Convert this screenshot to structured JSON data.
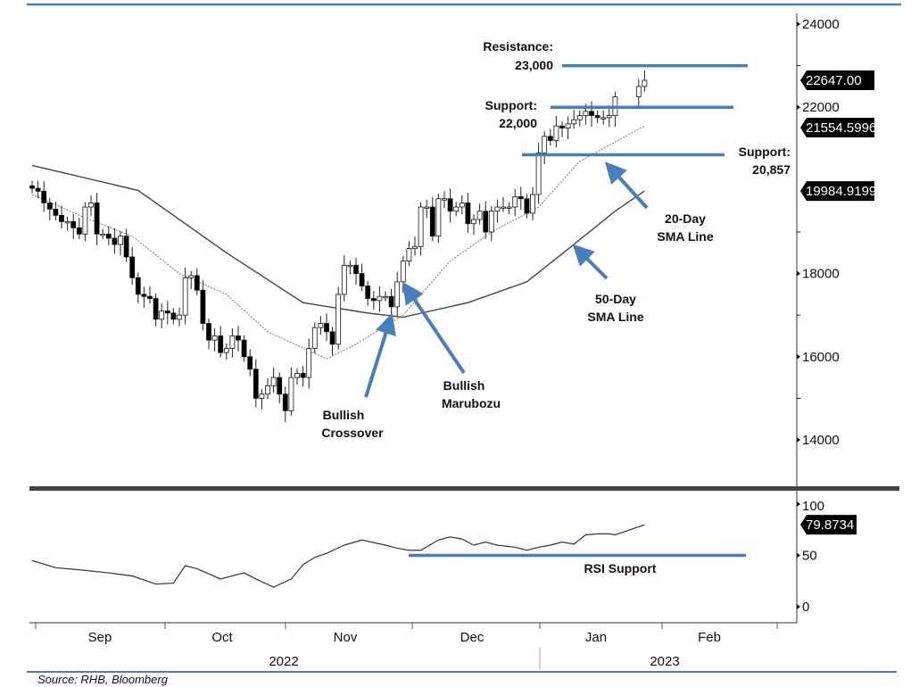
{
  "chart_data": {
    "type": "candlestick",
    "price_axis": {
      "ticks": [
        24000,
        22000,
        18000,
        16000,
        14000
      ],
      "tick_labels": [
        "24000",
        "22000",
        "18000",
        "16000",
        "14000"
      ],
      "ylim": [
        12900,
        24300
      ]
    },
    "price_tags": [
      "22647.00",
      "21554.5996",
      "19984.9199"
    ],
    "price_tag_values": [
      22647,
      21554.6,
      19984.92
    ],
    "closes": [
      20050,
      19980,
      19700,
      19550,
      19400,
      19250,
      19250,
      19100,
      18950,
      19600,
      19700,
      18950,
      18950,
      18850,
      18700,
      18900,
      18400,
      17900,
      17500,
      17450,
      17400,
      16900,
      17100,
      17050,
      16900,
      17000,
      17900,
      17950,
      17600,
      16800,
      16400,
      16500,
      16100,
      16200,
      16500,
      16400,
      16000,
      15700,
      15000,
      15100,
      15300,
      15500,
      15100,
      14700,
      15500,
      15600,
      15500,
      16200,
      16700,
      16800,
      16600,
      16300,
      17500,
      18200,
      18200,
      18000,
      17700,
      17400,
      17350,
      17450,
      17450,
      17200,
      17800,
      18300,
      18600,
      18650,
      19600,
      19600,
      18900,
      19800,
      19800,
      19500,
      19600,
      19700,
      19200,
      19300,
      19500,
      19000,
      19500,
      19600,
      19600,
      19600,
      19850,
      19800,
      19450,
      19900,
      20900,
      21300,
      21200,
      21550,
      21500,
      21600,
      21700,
      21800,
      21900,
      21800,
      21750,
      21750,
      21800,
      22250,
      null,
      null,
      null,
      22500,
      22647
    ],
    "sma20": [
      [
        0,
        19900
      ],
      [
        8,
        19400
      ],
      [
        17,
        18900
      ],
      [
        25,
        18000
      ],
      [
        33,
        17500
      ],
      [
        40,
        16600
      ],
      [
        50,
        15950
      ],
      [
        55,
        16300
      ],
      [
        63,
        17000
      ],
      [
        71,
        18300
      ],
      [
        78,
        19000
      ],
      [
        86,
        19600
      ],
      [
        93,
        20700
      ],
      [
        104,
        21550
      ]
    ],
    "sma50": [
      [
        0,
        20600
      ],
      [
        18,
        20000
      ],
      [
        33,
        18500
      ],
      [
        46,
        17300
      ],
      [
        57,
        17050
      ],
      [
        63,
        16950
      ],
      [
        74,
        17300
      ],
      [
        84,
        17800
      ],
      [
        92,
        18700
      ],
      [
        99,
        19500
      ],
      [
        104,
        19985
      ]
    ],
    "levels": [
      {
        "label_line1": "Resistance:",
        "label_line2": "23,000",
        "value": 23000
      },
      {
        "label_line1": "Support:",
        "label_line2": "22,000",
        "value": 22000
      },
      {
        "label_line1": "Support:",
        "label_line2": "20,857",
        "value": 20857
      }
    ],
    "annotations": {
      "sma20": [
        "20-Day",
        "SMA Line"
      ],
      "sma50": [
        "50-Day",
        "SMA Line"
      ],
      "crossover": [
        "Bullish",
        "Crossover"
      ],
      "marubozu": [
        "Bullish",
        "Marubozu"
      ]
    },
    "rsi": {
      "ticks": [
        100,
        50,
        0
      ],
      "tick_labels": [
        "100",
        "50",
        "0"
      ],
      "current_tag": "79.8734",
      "support_label": "RSI Support",
      "support_value": 50,
      "points": [
        [
          0,
          45
        ],
        [
          4,
          38
        ],
        [
          8,
          36
        ],
        [
          13,
          33
        ],
        [
          17,
          30
        ],
        [
          21,
          22
        ],
        [
          24,
          23
        ],
        [
          26,
          40
        ],
        [
          28,
          37
        ],
        [
          32,
          27
        ],
        [
          36,
          33
        ],
        [
          38,
          27
        ],
        [
          41,
          19
        ],
        [
          44,
          27
        ],
        [
          46,
          41
        ],
        [
          48,
          48
        ],
        [
          50,
          52
        ],
        [
          53,
          60
        ],
        [
          56,
          65
        ],
        [
          60,
          60
        ],
        [
          62,
          57
        ],
        [
          64,
          55
        ],
        [
          66,
          55
        ],
        [
          69,
          65
        ],
        [
          71,
          68
        ],
        [
          73,
          66
        ],
        [
          75,
          60
        ],
        [
          77,
          63
        ],
        [
          79,
          60
        ],
        [
          82,
          58
        ],
        [
          84,
          55
        ],
        [
          86,
          58
        ],
        [
          88,
          60
        ],
        [
          90,
          63
        ],
        [
          92,
          61
        ],
        [
          94,
          70
        ],
        [
          96,
          71
        ],
        [
          98,
          71
        ],
        [
          99,
          70
        ],
        [
          100,
          72
        ],
        [
          104,
          79.87
        ]
      ]
    },
    "x_axis": {
      "months": [
        "Sep",
        "Oct",
        "Nov",
        "Dec",
        "Jan",
        "Feb"
      ],
      "years": [
        "2022",
        "2023"
      ]
    },
    "source": "Source: RHB, Bloomberg",
    "colors": {
      "accent": "#4a7ebb",
      "up": "#ffffff",
      "down": "#000000"
    }
  }
}
